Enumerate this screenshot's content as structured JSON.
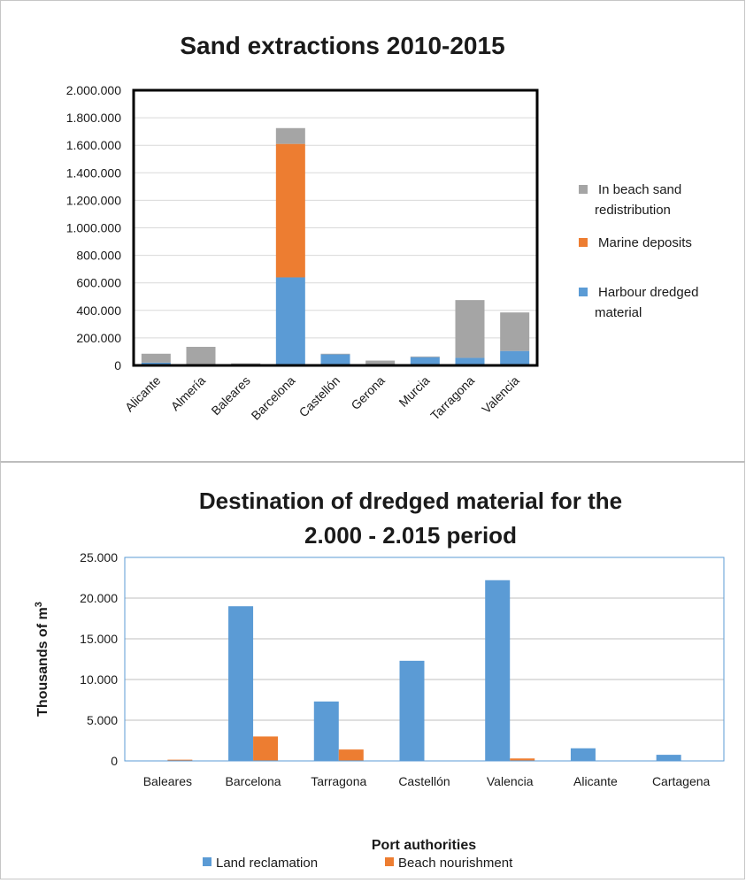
{
  "chart_data": [
    {
      "type": "bar",
      "stacked": true,
      "title": "Sand extractions 2010-2015",
      "xlabel": "",
      "ylabel": "",
      "ylim": [
        0,
        2000000
      ],
      "yticks": [
        "0",
        "200.000",
        "400.000",
        "600.000",
        "800.000",
        "1.000.000",
        "1.200.000",
        "1.400.000",
        "1.600.000",
        "1.800.000",
        "2.000.000"
      ],
      "categories": [
        "Alicante",
        "Almería",
        "Baleares",
        "Barcelona",
        "Castellón",
        "Gerona",
        "Murcia",
        "Tarragona",
        "Valencia"
      ],
      "series": [
        {
          "name": "Harbour dredged material",
          "legend": [
            "Harbour dredged",
            "material"
          ],
          "color": "#5b9bd5",
          "values": [
            20000,
            0,
            0,
            640000,
            80000,
            0,
            60000,
            55000,
            105000
          ]
        },
        {
          "name": "Marine deposits",
          "legend": [
            "Marine deposits"
          ],
          "color": "#ed7d31",
          "values": [
            0,
            0,
            0,
            970000,
            0,
            0,
            0,
            0,
            0
          ]
        },
        {
          "name": "In beach sand redistribution",
          "legend": [
            "In beach sand",
            "redistribution"
          ],
          "color": "#a5a5a5",
          "values": [
            65000,
            135000,
            15000,
            115000,
            5000,
            35000,
            5000,
            420000,
            280000
          ]
        }
      ],
      "grid": true,
      "legend_position": "right"
    },
    {
      "type": "bar",
      "stacked": false,
      "title": "Destination of dredged material for the 2.000 - 2.015 period",
      "title_lines": [
        "Destination of dredged material for the",
        "2.000 - 2.015 period"
      ],
      "xlabel": "Port authorities",
      "ylabel": "Thousands of m",
      "ylabel_sup": "3",
      "ylim": [
        0,
        25000
      ],
      "yticks": [
        "0",
        "5.000",
        "10.000",
        "15.000",
        "20.000",
        "25.000"
      ],
      "categories": [
        "Baleares",
        "Barcelona",
        "Tarragona",
        "Castellón",
        "Valencia",
        "Alicante",
        "Cartagena"
      ],
      "series": [
        {
          "name": "Land reclamation",
          "color": "#5b9bd5",
          "values": [
            0,
            19000,
            7300,
            12300,
            22200,
            1550,
            750
          ]
        },
        {
          "name": "Beach nourishment",
          "color": "#ed7d31",
          "values": [
            150,
            3000,
            1400,
            0,
            300,
            0,
            0
          ]
        }
      ],
      "grid": true,
      "legend_position": "bottom"
    }
  ]
}
